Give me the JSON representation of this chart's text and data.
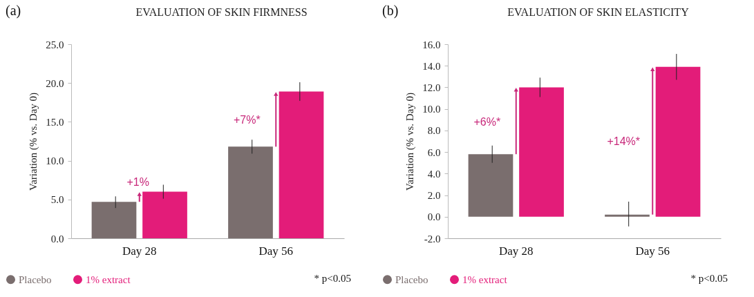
{
  "chart_data": [
    {
      "type": "bar",
      "title": "EVALUATION OF SKIN FIRMNESS",
      "ylabel": "Variation (% vs. Day 0)",
      "categories": [
        "Day 28",
        "Day 56"
      ],
      "series": [
        {
          "name": "Placebo",
          "color": "#7a6e6e",
          "values": [
            4.7,
            11.8
          ],
          "errors": [
            [
              3.9,
              5.4
            ],
            [
              10.9,
              12.7
            ]
          ]
        },
        {
          "name": "1% extract",
          "color": "#e31c79",
          "values": [
            6.0,
            18.9
          ],
          "errors": [
            [
              5.1,
              6.9
            ],
            [
              17.7,
              20.1
            ]
          ]
        }
      ],
      "ylim": [
        0,
        25
      ],
      "yticks": [
        {
          "value": 0,
          "label": "0.0"
        },
        {
          "value": 5,
          "label": "5.0"
        },
        {
          "value": 10,
          "label": "10.0"
        },
        {
          "value": 15,
          "label": "15.0"
        },
        {
          "value": 20,
          "label": "20.0"
        },
        {
          "value": 25,
          "label": "25.0"
        }
      ],
      "legend": "bottom left",
      "annotations": [
        "(a)",
        "+1%",
        "+7%*",
        "* p<0.05"
      ]
    },
    {
      "type": "bar",
      "title": "EVALUATION OF SKIN ELASTICITY",
      "ylabel": "Variation (% vs. Day 0)",
      "categories": [
        "Day 28",
        "Day 56"
      ],
      "series": [
        {
          "name": "Placebo",
          "color": "#7a6e6e",
          "values": [
            5.8,
            0.2
          ],
          "errors": [
            [
              5.0,
              6.6
            ],
            [
              -0.9,
              1.4
            ]
          ]
        },
        {
          "name": "1% extract",
          "color": "#e31c79",
          "values": [
            12.0,
            13.9
          ],
          "errors": [
            [
              11.1,
              12.9
            ],
            [
              12.7,
              15.1
            ]
          ]
        }
      ],
      "ylim": [
        -2,
        16
      ],
      "yticks": [
        {
          "value": -2,
          "label": "-2.0"
        },
        {
          "value": 0,
          "label": "0.0"
        },
        {
          "value": 2,
          "label": "2.0"
        },
        {
          "value": 4,
          "label": "4.0"
        },
        {
          "value": 6,
          "label": "6.0"
        },
        {
          "value": 8,
          "label": "8.0"
        },
        {
          "value": 10,
          "label": "10.0"
        },
        {
          "value": 12,
          "label": "12.0"
        },
        {
          "value": 14,
          "label": "14.0"
        },
        {
          "value": 16,
          "label": "16.0"
        }
      ],
      "legend": "bottom left",
      "annotations": [
        "(b)",
        "+6%*",
        "+14%*",
        "* p<0.05"
      ]
    }
  ]
}
